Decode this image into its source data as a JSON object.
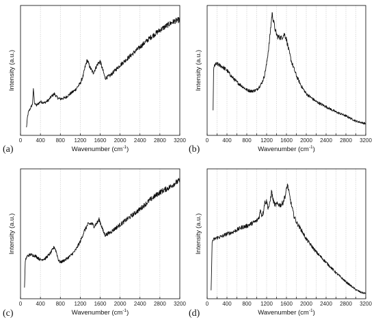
{
  "chart_data": [
    {
      "type": "line",
      "panel_label": "(a)",
      "xlabel": "Wavenumber (cm",
      "xlabel_sup": "-1",
      "xlabel_end": ")",
      "ylabel": "Intensity (a.u.)",
      "xlim": [
        0,
        3200
      ],
      "ylim": [
        0,
        100
      ],
      "xticks": [
        "0",
        "400",
        "800",
        "1200",
        "1600",
        "2000",
        "2400",
        "2800",
        "3200"
      ],
      "grid": "vertical dotted",
      "series": [
        {
          "x": [
            120,
            140,
            160,
            200,
            240,
            260,
            280,
            320,
            400,
            480,
            560,
            620,
            680,
            740,
            800,
            900,
            1000,
            1100,
            1200,
            1260,
            1300,
            1340,
            1400,
            1460,
            1500,
            1550,
            1600,
            1640,
            1700,
            1800,
            1900,
            2000,
            2200,
            2400,
            2600,
            2800,
            3000,
            3100,
            3200
          ],
          "y": [
            6,
            14,
            18,
            21,
            24,
            36,
            25,
            23,
            26,
            25,
            27,
            30,
            32,
            29,
            28,
            29,
            32,
            35,
            40,
            46,
            53,
            58,
            52,
            48,
            51,
            55,
            57,
            52,
            44,
            46,
            50,
            54,
            61,
            68,
            75,
            81,
            86,
            88,
            89
          ]
        }
      ]
    },
    {
      "type": "line",
      "panel_label": "(b)",
      "xlabel": "Wavenumber (cm",
      "xlabel_sup": "-1",
      "xlabel_end": ")",
      "ylabel": "Intensity (a.u.)",
      "xlim": [
        0,
        3200
      ],
      "ylim": [
        0,
        100
      ],
      "xticks": [
        "0",
        "200",
        "400",
        "600",
        "800",
        "1000",
        "1200",
        "1400",
        "1600",
        "1800",
        "2000",
        "2200",
        "2400",
        "2600",
        "2800",
        "3000",
        "3200"
      ],
      "grid": "vertical dotted",
      "series": [
        {
          "x": [
            120,
            130,
            150,
            200,
            300,
            400,
            500,
            600,
            700,
            800,
            900,
            1000,
            1100,
            1150,
            1200,
            1250,
            1280,
            1310,
            1340,
            1380,
            1420,
            1500,
            1560,
            1600,
            1650,
            1700,
            1800,
            1900,
            2000,
            2200,
            2400,
            2600,
            2800,
            3000,
            3100,
            3200
          ],
          "y": [
            19,
            50,
            54,
            55,
            53,
            50,
            45,
            41,
            38,
            35,
            34,
            35,
            40,
            45,
            55,
            70,
            82,
            94,
            88,
            80,
            76,
            75,
            78,
            74,
            65,
            57,
            46,
            38,
            32,
            26,
            22,
            18,
            15,
            11,
            10,
            9
          ]
        }
      ]
    },
    {
      "type": "line",
      "panel_label": "(c)",
      "xlabel": "Wavenumber (cm",
      "xlabel_sup": "-1",
      "xlabel_end": ")",
      "ylabel": "Intensity (a.u.)",
      "xlim": [
        0,
        3200
      ],
      "ylim": [
        0,
        100
      ],
      "xticks": [
        "0",
        "400",
        "800",
        "1200",
        "1600",
        "2000",
        "2400",
        "2800",
        "3200"
      ],
      "grid": "vertical dotted",
      "series": [
        {
          "x": [
            80,
            95,
            110,
            140,
            200,
            300,
            400,
            500,
            600,
            680,
            720,
            760,
            800,
            900,
            1000,
            1100,
            1200,
            1280,
            1350,
            1420,
            1480,
            1550,
            1580,
            1620,
            1660,
            1700,
            1800,
            1900,
            2000,
            2200,
            2400,
            2600,
            2800,
            3000,
            3100,
            3200
          ],
          "y": [
            8,
            28,
            31,
            33,
            34,
            33,
            30,
            31,
            35,
            40,
            36,
            30,
            28,
            30,
            33,
            37,
            44,
            52,
            57,
            58,
            56,
            59,
            61,
            57,
            52,
            49,
            51,
            54,
            57,
            63,
            69,
            76,
            82,
            86,
            89,
            91
          ]
        }
      ]
    },
    {
      "type": "line",
      "panel_label": "(d)",
      "xlabel": "Wavenumber (cm",
      "xlabel_sup": "-1",
      "xlabel_end": ")",
      "ylabel": "Intensity (a.u.)",
      "xlim": [
        0,
        3200
      ],
      "ylim": [
        0,
        100
      ],
      "xticks": [
        "0",
        "200",
        "400",
        "600",
        "800",
        "1000",
        "1200",
        "1400",
        "1600",
        "1800",
        "2000",
        "2200",
        "2400",
        "2600",
        "2800",
        "3000",
        "3200"
      ],
      "grid": "vertical dotted",
      "series": [
        {
          "x": [
            80,
            100,
            110,
            150,
            200,
            300,
            400,
            500,
            600,
            700,
            800,
            900,
            1000,
            1050,
            1080,
            1100,
            1130,
            1160,
            1200,
            1230,
            1260,
            1300,
            1330,
            1370,
            1420,
            1480,
            1530,
            1580,
            1620,
            1650,
            1690,
            1750,
            1800,
            1900,
            2000,
            2200,
            2400,
            2600,
            2800,
            2900,
            3000,
            3100,
            3200
          ],
          "y": [
            6,
            42,
            45,
            46,
            47,
            48,
            50,
            51,
            53,
            55,
            56,
            58,
            60,
            63,
            69,
            64,
            66,
            74,
            75,
            70,
            72,
            83,
            76,
            72,
            73,
            72,
            74,
            80,
            88,
            82,
            74,
            64,
            59,
            53,
            46,
            36,
            28,
            20,
            13,
            10,
            7,
            5,
            4
          ]
        }
      ]
    }
  ]
}
